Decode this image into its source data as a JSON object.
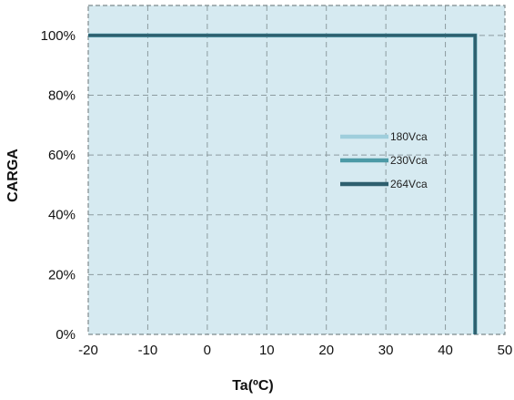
{
  "chart_data": {
    "type": "line",
    "title": "",
    "xlabel": "Ta(ºC)",
    "ylabel": "CARGA",
    "xlim": [
      -20,
      50
    ],
    "ylim": [
      0,
      110
    ],
    "x_ticks": [
      -20,
      -10,
      0,
      10,
      20,
      30,
      40,
      50
    ],
    "x_tick_labels": [
      "-20",
      "-10",
      "0",
      "10",
      "20",
      "30",
      "40",
      "50"
    ],
    "y_ticks": [
      0,
      20,
      40,
      60,
      80,
      100
    ],
    "y_tick_labels": [
      "0%",
      "20%",
      "40%",
      "60%",
      "80%",
      "100%"
    ],
    "grid": true,
    "legend_position": "center-right",
    "colors": {
      "plot_background": "#d6eaf1",
      "grid": "#8c9b9f",
      "border": "#7e8a8d"
    },
    "series": [
      {
        "name": "180Vca",
        "color": "#9fcedc",
        "x": [
          -20,
          45,
          45
        ],
        "y": [
          100,
          100,
          0
        ]
      },
      {
        "name": "230Vca",
        "color": "#4c9aa6",
        "x": [
          -20,
          45,
          45
        ],
        "y": [
          100,
          100,
          0
        ]
      },
      {
        "name": "264Vca",
        "color": "#2e5f6e",
        "x": [
          -20,
          45,
          45
        ],
        "y": [
          100,
          100,
          0
        ]
      }
    ]
  }
}
